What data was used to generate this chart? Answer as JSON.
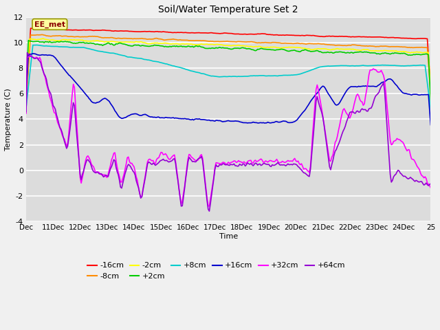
{
  "title": "Soil/Water Temperature Set 2",
  "xlabel": "Time",
  "ylabel": "Temperature (C)",
  "ylim": [
    -4,
    12
  ],
  "yticks": [
    -4,
    -2,
    0,
    2,
    4,
    6,
    8,
    10,
    12
  ],
  "xtick_labels": [
    "Dec",
    "11Dec",
    "12Dec",
    "13Dec",
    "14Dec",
    "15Dec",
    "16Dec",
    "17Dec",
    "18Dec",
    "19Dec",
    "20Dec",
    "21Dec",
    "22Dec",
    "23Dec",
    "24Dec",
    "25"
  ],
  "xtick_positions": [
    0,
    24,
    48,
    72,
    96,
    120,
    144,
    168,
    192,
    216,
    240,
    264,
    288,
    312,
    336,
    360
  ],
  "annotation_text": "EE_met",
  "series": [
    {
      "label": "-16cm",
      "color": "#FF0000"
    },
    {
      "label": "-8cm",
      "color": "#FF8C00"
    },
    {
      "label": "-2cm",
      "color": "#FFFF00"
    },
    {
      "label": "+2cm",
      "color": "#00CC00"
    },
    {
      "label": "+8cm",
      "color": "#00CCCC"
    },
    {
      "label": "+16cm",
      "color": "#0000CD"
    },
    {
      "label": "+32cm",
      "color": "#FF00FF"
    },
    {
      "label": "+64cm",
      "color": "#9400D3"
    }
  ],
  "bg_color": "#DCDCDC",
  "fig_facecolor": "#F0F0F0"
}
